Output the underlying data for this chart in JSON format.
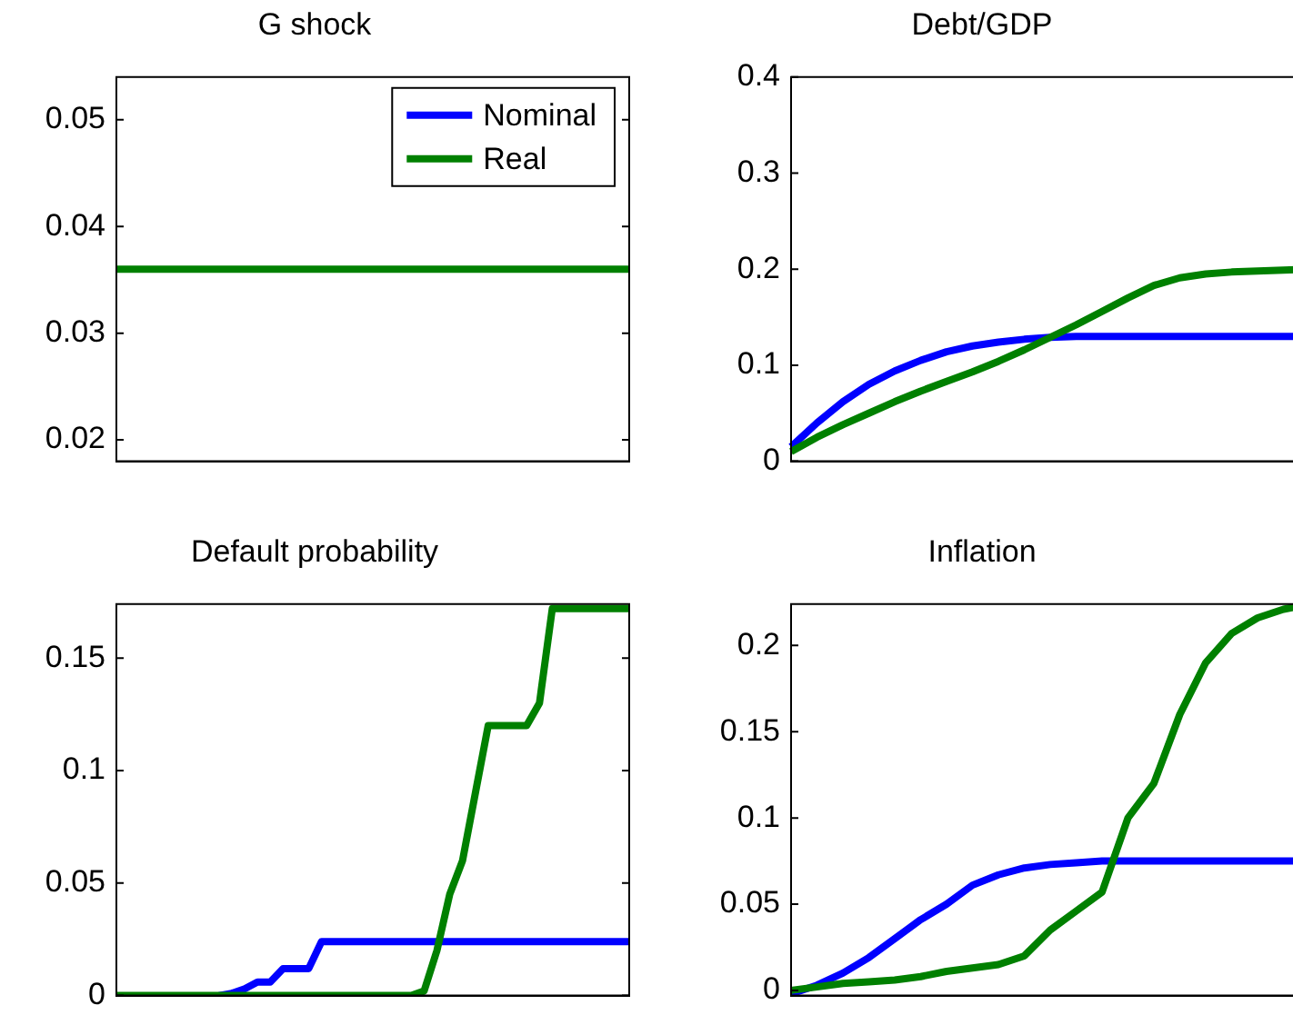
{
  "chart_data": [
    {
      "type": "line",
      "title": "G shock",
      "categories": [
        null,
        null,
        null,
        null,
        null,
        null,
        null,
        null,
        null,
        null,
        null,
        null,
        null,
        null,
        null,
        null,
        null,
        null,
        null,
        null,
        null
      ],
      "series": [
        {
          "name": "Nominal",
          "color": "#0000ff",
          "values": [
            null,
            null,
            null,
            null,
            null,
            null,
            null,
            null,
            null,
            null,
            null,
            null,
            null,
            null,
            null,
            null,
            null,
            null,
            null,
            null,
            null
          ]
        },
        {
          "name": "Real",
          "color": "#008000",
          "values": [
            0.036,
            0.036,
            0.036,
            0.036,
            0.036,
            0.036,
            0.036,
            0.036,
            0.036,
            0.036,
            0.036,
            0.036,
            0.036,
            0.036,
            0.036,
            0.036,
            0.036,
            0.036,
            0.036,
            0.036,
            0.036
          ]
        }
      ],
      "ylim": [
        0.018,
        0.054
      ],
      "yticks": [
        0.02,
        0.03,
        0.04,
        0.05
      ],
      "legend": "top right",
      "tick_labels": "y",
      "grid": false
    },
    {
      "type": "line",
      "title": "Debt/GDP",
      "categories": [
        null,
        null,
        null,
        null,
        null,
        null,
        null,
        null,
        null,
        null,
        null,
        null,
        null,
        null,
        null,
        null,
        null,
        null,
        null,
        null,
        null
      ],
      "series": [
        {
          "color": "#0000ff",
          "values": [
            0.015,
            0.04,
            0.062,
            0.08,
            0.094,
            0.105,
            0.114,
            0.12,
            0.124,
            0.127,
            0.129,
            0.13,
            0.13,
            0.13,
            0.13,
            0.13,
            0.13,
            0.13,
            0.13,
            0.13,
            0.13
          ]
        },
        {
          "color": "#008000",
          "values": [
            0.01,
            0.025,
            0.038,
            0.05,
            0.062,
            0.073,
            0.083,
            0.093,
            0.104,
            0.116,
            0.129,
            0.142,
            0.156,
            0.17,
            0.183,
            0.191,
            0.195,
            0.197,
            0.198,
            0.199,
            0.2
          ]
        }
      ],
      "ylim": [
        0,
        0.4
      ],
      "yticks": [
        0,
        0.1,
        0.2,
        0.3,
        0.4
      ],
      "legend": false,
      "tick_labels": "y",
      "grid": false
    },
    {
      "type": "line",
      "title": "Default probability",
      "categories": [
        null,
        null,
        null,
        null,
        null,
        null,
        null,
        null,
        null,
        null,
        null,
        null,
        null,
        null,
        null,
        null,
        null,
        null,
        null,
        null,
        null,
        null,
        null,
        null,
        null,
        null,
        null,
        null,
        null,
        null,
        null,
        null,
        null,
        null,
        null,
        null,
        null,
        null,
        null,
        null,
        null
      ],
      "series": [
        {
          "color": "#0000ff",
          "values": [
            null,
            null,
            null,
            null,
            null,
            null,
            null,
            null,
            0,
            0.001,
            0.003,
            0.006,
            0.006,
            0.012,
            0.012,
            0.012,
            0.024,
            0.024,
            0.024,
            0.024,
            0.024,
            0.024,
            0.024,
            0.024,
            0.024,
            0.024,
            0.024,
            0.024,
            0.024,
            0.024,
            0.024,
            0.024,
            0.024,
            0.024,
            0.024,
            0.024,
            0.024,
            0.024,
            0.024,
            0.024,
            0.024
          ]
        },
        {
          "color": "#008000",
          "values": [
            0,
            0,
            0,
            0,
            0,
            0,
            0,
            0,
            0,
            0,
            0,
            0,
            0,
            0,
            0,
            0,
            0,
            0,
            0,
            0,
            0,
            0,
            0,
            0,
            0.002,
            0.02,
            0.045,
            0.06,
            0.09,
            0.12,
            0.12,
            0.12,
            0.12,
            0.13,
            0.172,
            0.172,
            0.172,
            0.172,
            0.172,
            0.172,
            0.172
          ]
        }
      ],
      "ylim": [
        0,
        0.174
      ],
      "yticks": [
        0,
        0.05,
        0.1,
        0.15
      ],
      "legend": false,
      "tick_labels": "y",
      "grid": false
    },
    {
      "type": "line",
      "title": "Inflation",
      "categories": [
        null,
        null,
        null,
        null,
        null,
        null,
        null,
        null,
        null,
        null,
        null,
        null,
        null,
        null,
        null,
        null,
        null,
        null,
        null,
        null,
        null
      ],
      "series": [
        {
          "color": "#0000ff",
          "values": [
            -0.002,
            0.003,
            0.01,
            0.019,
            0.03,
            0.041,
            0.05,
            0.061,
            0.067,
            0.071,
            0.073,
            0.074,
            0.075,
            0.075,
            0.075,
            0.075,
            0.075,
            0.075,
            0.075,
            0.075,
            0.075
          ]
        },
        {
          "color": "#008000",
          "values": [
            0,
            0.002,
            0.004,
            0.005,
            0.006,
            0.008,
            0.011,
            0.013,
            0.015,
            0.02,
            0.035,
            0.046,
            0.057,
            0.1,
            0.12,
            0.16,
            0.19,
            0.207,
            0.216,
            0.221,
            0.224
          ]
        }
      ],
      "ylim": [
        -0.003,
        0.224
      ],
      "yticks": [
        0,
        0.05,
        0.1,
        0.15,
        0.2
      ],
      "legend": false,
      "tick_labels": "y",
      "grid": false
    }
  ]
}
